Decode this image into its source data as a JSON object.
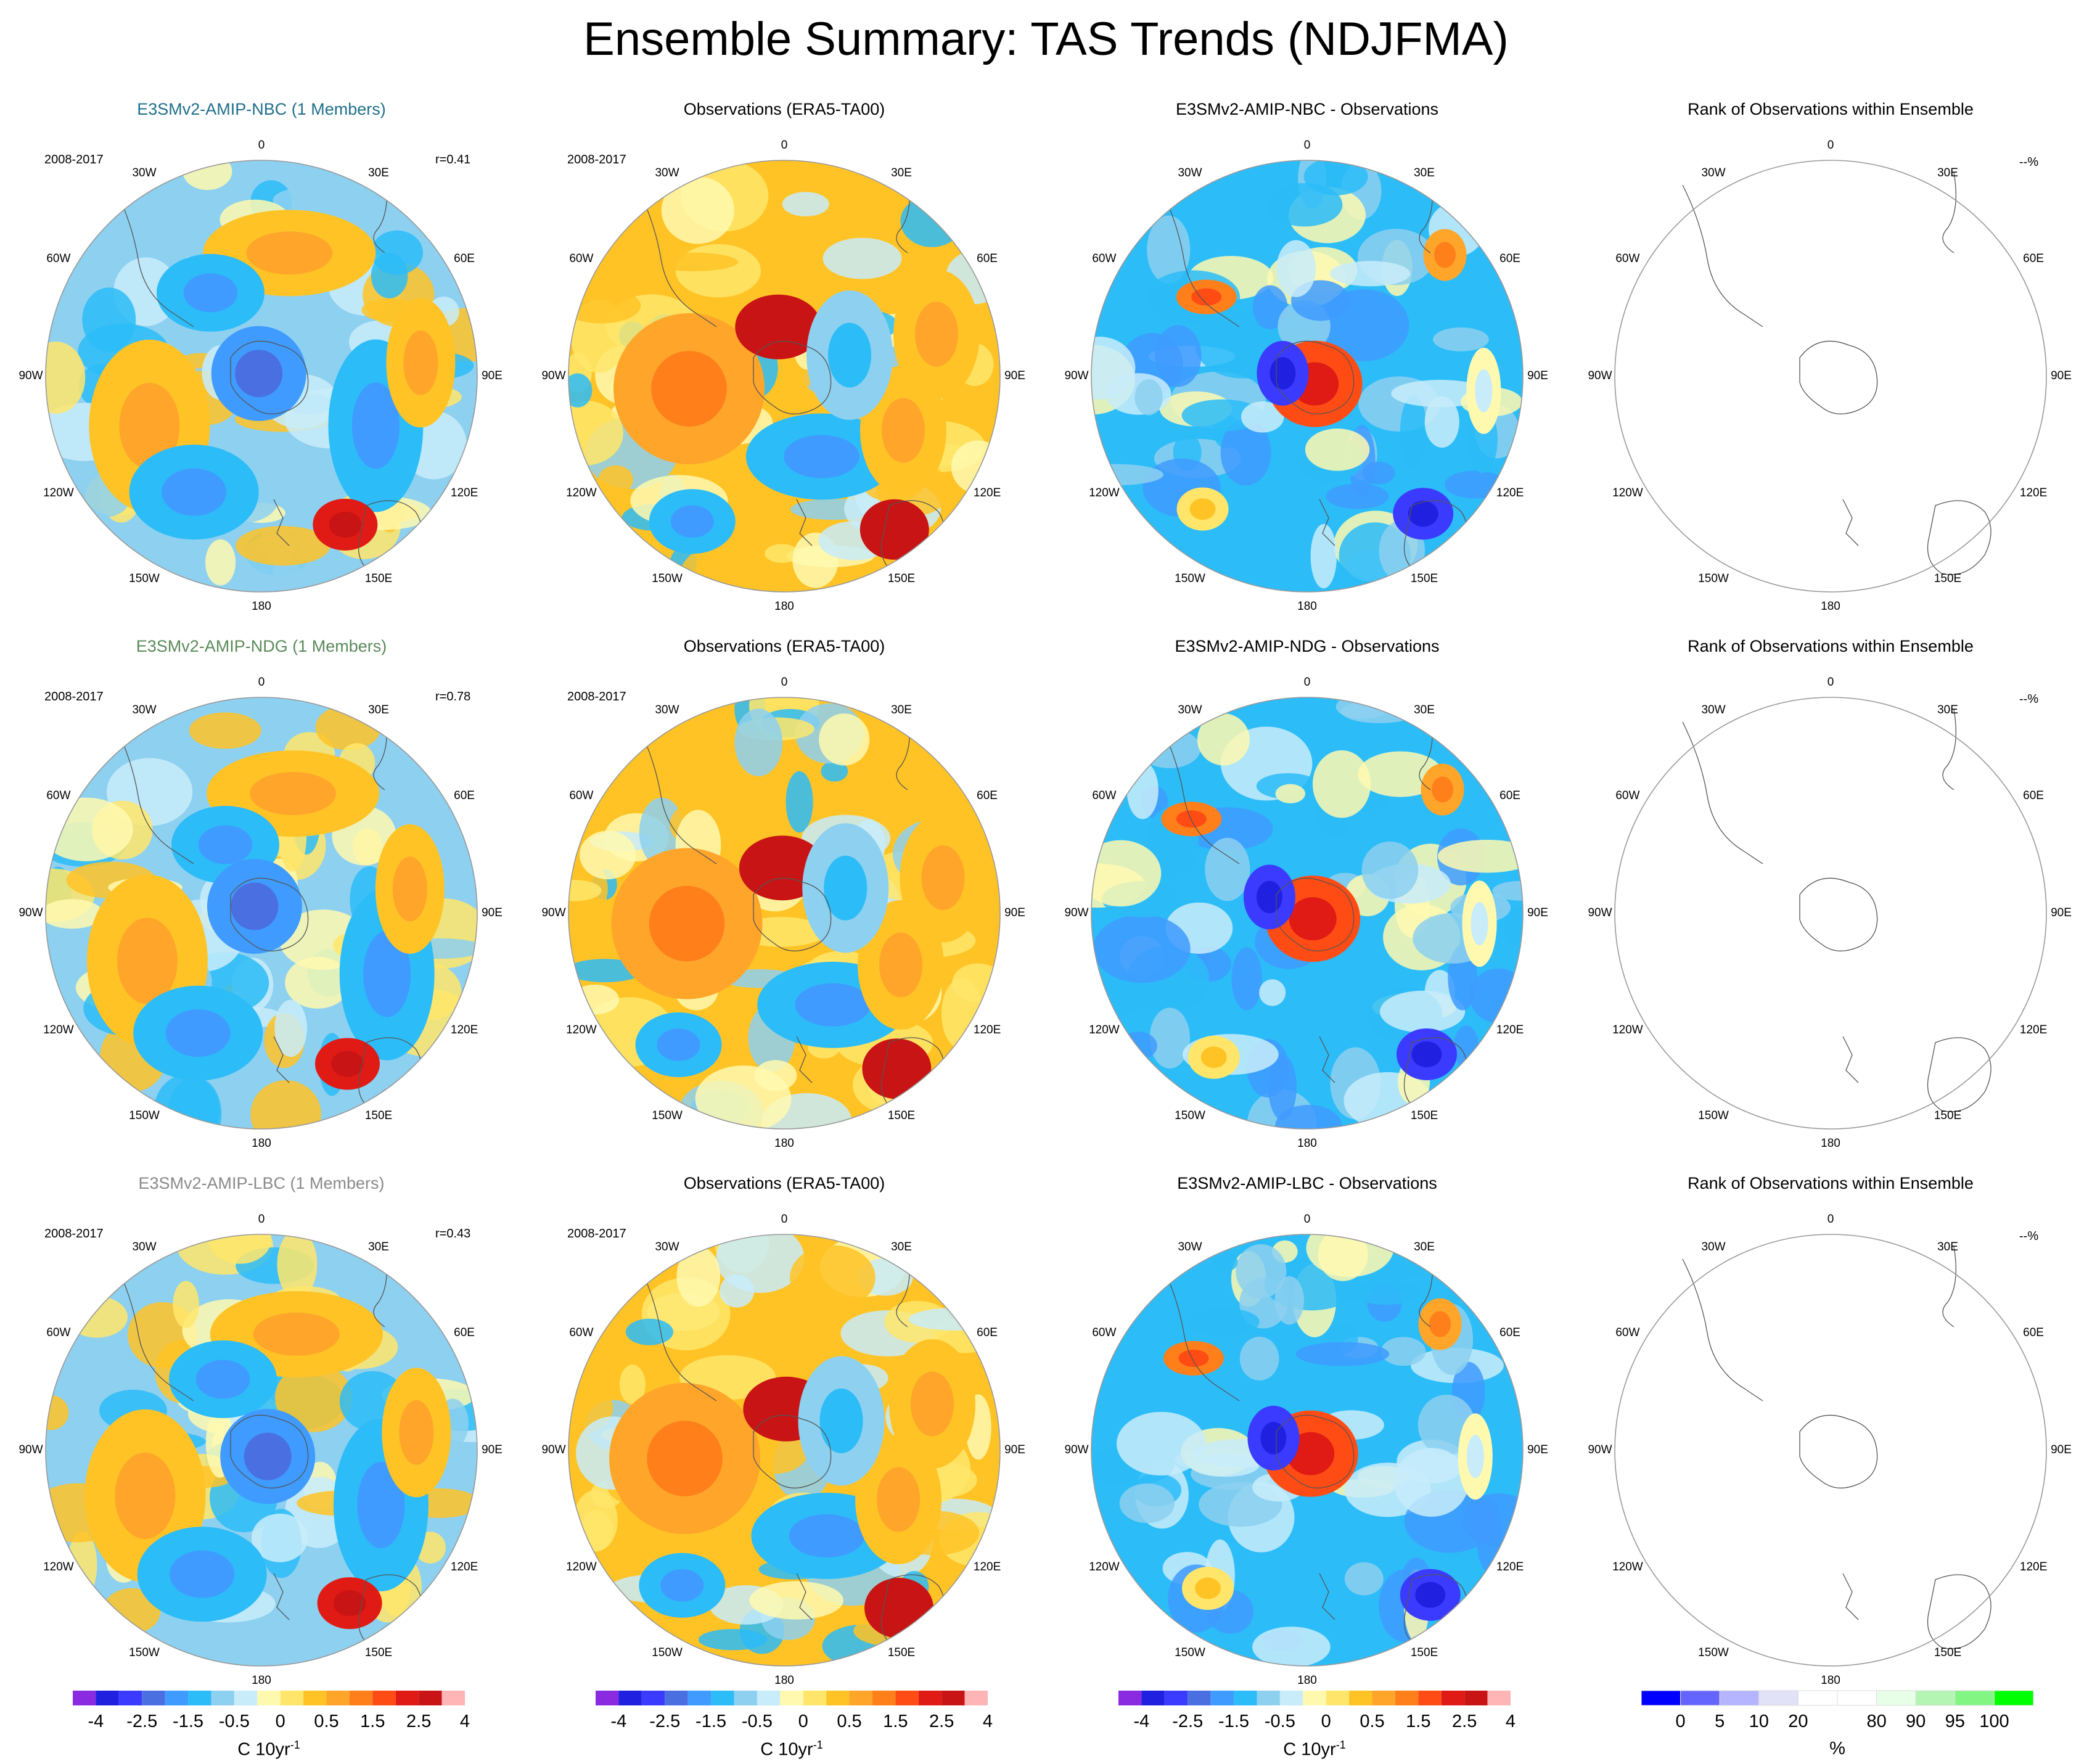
{
  "title": "Ensemble Summary: TAS Trends (NDJFMA)",
  "period": "2008-2017",
  "longitude_labels": [
    "0",
    "30E",
    "60E",
    "90E",
    "120E",
    "150E",
    "180",
    "150W",
    "120W",
    "90W",
    "60W",
    "30W"
  ],
  "colors": {
    "nbc_title": "#1f6f8b",
    "ndg_title": "#5a8a5a",
    "lbc_title": "#8a8a8a",
    "obs_title": "#000000"
  },
  "trend_palette": [
    "#8a2be2",
    "#2020e0",
    "#3b3bff",
    "#4a6fe0",
    "#3f9bff",
    "#2cbcf8",
    "#8dd0f0",
    "#c8ecfa",
    "#fff9b0",
    "#ffe66b",
    "#ffc326",
    "#ffa52a",
    "#ff7f1a",
    "#ff4c14",
    "#e01a14",
    "#c81414",
    "#ffb5b5"
  ],
  "rank_palette": [
    "#0000ff",
    "#6464ff",
    "#b4b4ff",
    "#e1e1f8",
    "#ffffff",
    "#ffffff",
    "#e6ffe6",
    "#b4f5b4",
    "#82f582",
    "#00ff00"
  ],
  "chart_data": [
    {
      "type": "heatmap",
      "title": "E3SMv2-AMIP-NBC (1 Members)",
      "subtitle": "2008-2017",
      "annotation": "r=0.41",
      "row": 0,
      "col": 0,
      "kind": "model"
    },
    {
      "type": "heatmap",
      "title": "Observations (ERA5-TA00)",
      "subtitle": "2008-2017",
      "row": 0,
      "col": 1,
      "kind": "obs"
    },
    {
      "type": "heatmap",
      "title": "E3SMv2-AMIP-NBC - Observations",
      "row": 0,
      "col": 2,
      "kind": "diff"
    },
    {
      "type": "heatmap",
      "title": "Rank of Observations within Ensemble",
      "annotation": "--%",
      "row": 0,
      "col": 3,
      "kind": "rank"
    },
    {
      "type": "heatmap",
      "title": "E3SMv2-AMIP-NDG (1 Members)",
      "subtitle": "2008-2017",
      "annotation": "r=0.78",
      "row": 1,
      "col": 0,
      "kind": "model"
    },
    {
      "type": "heatmap",
      "title": "Observations (ERA5-TA00)",
      "subtitle": "2008-2017",
      "row": 1,
      "col": 1,
      "kind": "obs"
    },
    {
      "type": "heatmap",
      "title": "E3SMv2-AMIP-NDG - Observations",
      "row": 1,
      "col": 2,
      "kind": "diff"
    },
    {
      "type": "heatmap",
      "title": "Rank of Observations within Ensemble",
      "annotation": "--%",
      "row": 1,
      "col": 3,
      "kind": "rank"
    },
    {
      "type": "heatmap",
      "title": "E3SMv2-AMIP-LBC (1 Members)",
      "subtitle": "2008-2017",
      "annotation": "r=0.43",
      "row": 2,
      "col": 0,
      "kind": "model"
    },
    {
      "type": "heatmap",
      "title": "Observations (ERA5-TA00)",
      "subtitle": "2008-2017",
      "row": 2,
      "col": 1,
      "kind": "obs"
    },
    {
      "type": "heatmap",
      "title": "E3SMv2-AMIP-LBC - Observations",
      "row": 2,
      "col": 2,
      "kind": "diff"
    },
    {
      "type": "heatmap",
      "title": "Rank of Observations within Ensemble",
      "annotation": "--%",
      "row": 2,
      "col": 3,
      "kind": "rank"
    }
  ],
  "colorbars": [
    {
      "kind": "trend",
      "ticks": [
        "-4",
        "-2.5",
        "-1.5",
        "-0.5",
        "0",
        "0.5",
        "1.5",
        "2.5",
        "4"
      ],
      "unit_base": "C 10yr",
      "unit_exp": "-1"
    },
    {
      "kind": "trend",
      "ticks": [
        "-4",
        "-2.5",
        "-1.5",
        "-0.5",
        "0",
        "0.5",
        "1.5",
        "2.5",
        "4"
      ],
      "unit_base": "C 10yr",
      "unit_exp": "-1"
    },
    {
      "kind": "trend",
      "ticks": [
        "-4",
        "-2.5",
        "-1.5",
        "-0.5",
        "0",
        "0.5",
        "1.5",
        "2.5",
        "4"
      ],
      "unit_base": "C 10yr",
      "unit_exp": "-1"
    },
    {
      "kind": "rank",
      "ticks": [
        "0",
        "5",
        "10",
        "20",
        "80",
        "90",
        "95",
        "100"
      ],
      "unit_base": "%",
      "unit_exp": ""
    }
  ]
}
